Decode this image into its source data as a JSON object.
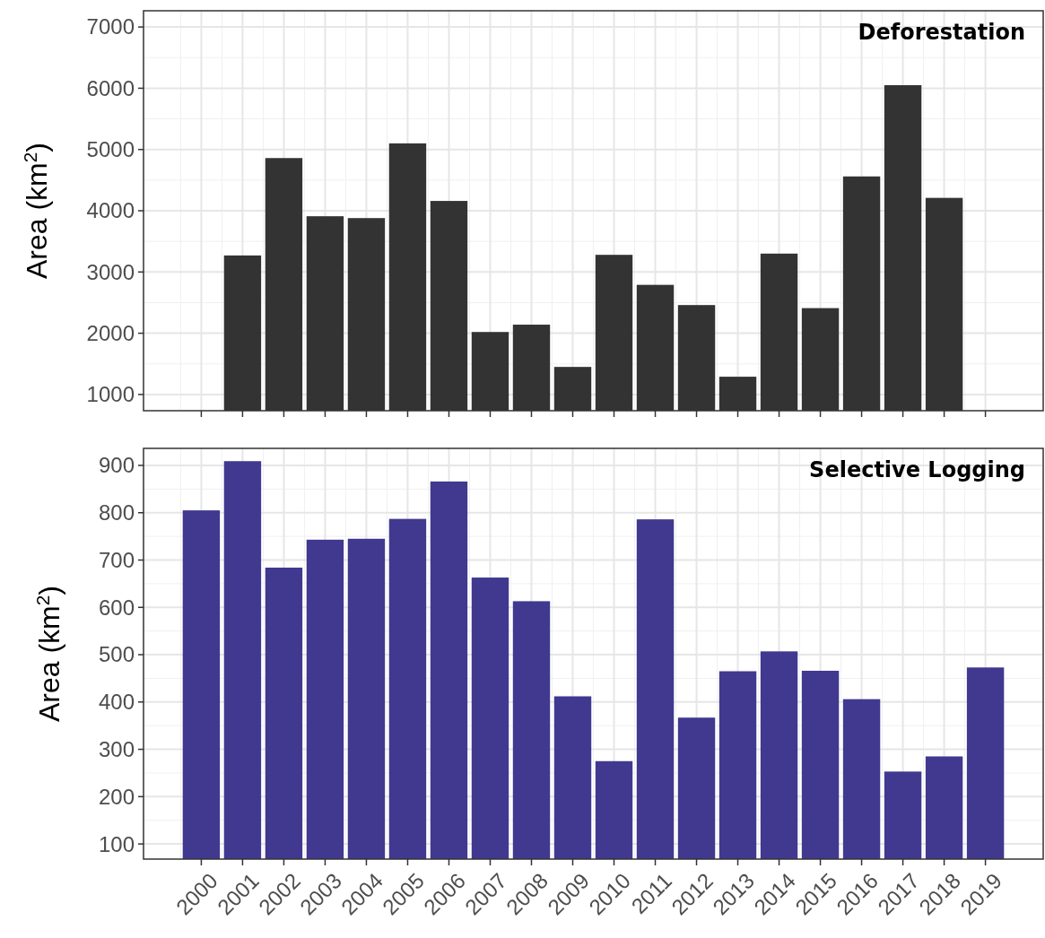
{
  "chart_data": [
    {
      "type": "bar",
      "title": "Deforestation",
      "ylabel": "Area (km$^{2}$)",
      "categories": [
        "2000",
        "2001",
        "2002",
        "2003",
        "2004",
        "2005",
        "2006",
        "2007",
        "2008",
        "2009",
        "2010",
        "2011",
        "2012",
        "2013",
        "2014",
        "2015",
        "2016",
        "2017",
        "2018",
        "2019"
      ],
      "series": [
        {
          "color": "#333333",
          "values": [
            null,
            3270,
            4860,
            3910,
            3880,
            5100,
            4160,
            2020,
            2140,
            1450,
            3280,
            2790,
            2460,
            1290,
            3300,
            2410,
            4560,
            6050,
            4210,
            null
          ]
        }
      ],
      "ylim": [
        735,
        7265
      ],
      "yticks": [
        1000,
        2000,
        3000,
        4000,
        5000,
        6000,
        7000
      ],
      "grid": true,
      "tick_labels": "y"
    },
    {
      "type": "bar",
      "title": "Selective Logging",
      "ylabel": "Area (km$^{2}$)",
      "categories": [
        "2000",
        "2001",
        "2002",
        "2003",
        "2004",
        "2005",
        "2006",
        "2007",
        "2008",
        "2009",
        "2010",
        "2011",
        "2012",
        "2013",
        "2014",
        "2015",
        "2016",
        "2017",
        "2018",
        "2019"
      ],
      "series": [
        {
          "color": "#40398f",
          "values": [
            805,
            909,
            684,
            743,
            745,
            787,
            866,
            663,
            613,
            412,
            275,
            786,
            367,
            465,
            507,
            466,
            406,
            253,
            285,
            473
          ]
        }
      ],
      "ylim": [
        68,
        936
      ],
      "yticks": [
        100,
        200,
        300,
        400,
        500,
        600,
        700,
        800,
        900
      ],
      "grid": true
    }
  ]
}
